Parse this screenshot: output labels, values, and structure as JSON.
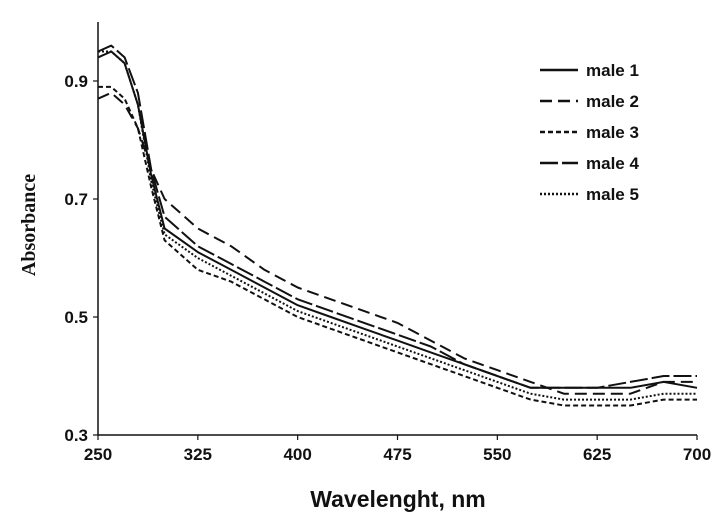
{
  "chart_data": {
    "type": "line",
    "xlabel": "Wavelenght, nm",
    "ylabel": "Absorbance",
    "xlim": [
      250,
      700
    ],
    "ylim": [
      0.3,
      1.0
    ],
    "xticks": [
      "250",
      "325",
      "400",
      "475",
      "550",
      "625",
      "700"
    ],
    "yticks": [
      "0.3",
      "0.5",
      "0.7",
      "0.9"
    ],
    "grid": false,
    "legend_position": "top-right",
    "x": [
      250,
      260,
      270,
      280,
      290,
      300,
      325,
      350,
      375,
      400,
      425,
      450,
      475,
      500,
      525,
      550,
      575,
      600,
      625,
      650,
      675,
      700
    ],
    "series": [
      {
        "name": "male 1",
        "style": "solid",
        "values": [
          0.94,
          0.95,
          0.93,
          0.86,
          0.74,
          0.65,
          0.61,
          0.58,
          0.55,
          0.52,
          0.5,
          0.48,
          0.46,
          0.44,
          0.42,
          0.4,
          0.38,
          0.38,
          0.38,
          0.38,
          0.39,
          0.38
        ]
      },
      {
        "name": "male 2",
        "style": "dashed",
        "values": [
          0.87,
          0.88,
          0.86,
          0.82,
          0.75,
          0.7,
          0.65,
          0.62,
          0.58,
          0.55,
          0.53,
          0.51,
          0.49,
          0.46,
          0.43,
          0.41,
          0.39,
          0.37,
          0.37,
          0.37,
          0.39,
          0.39
        ]
      },
      {
        "name": "male 3",
        "style": "short-dashed",
        "values": [
          0.89,
          0.89,
          0.87,
          0.82,
          0.72,
          0.63,
          0.58,
          0.56,
          0.53,
          0.5,
          0.48,
          0.46,
          0.44,
          0.42,
          0.4,
          0.38,
          0.36,
          0.35,
          0.35,
          0.35,
          0.36,
          0.36
        ]
      },
      {
        "name": "male 4",
        "style": "long-dashed",
        "values": [
          0.95,
          0.96,
          0.94,
          0.88,
          0.75,
          0.67,
          0.62,
          0.59,
          0.56,
          0.53,
          0.51,
          0.49,
          0.47,
          0.45,
          0.42,
          0.4,
          0.38,
          0.38,
          0.38,
          0.39,
          0.4,
          0.4
        ]
      },
      {
        "name": "male 5",
        "style": "dotted",
        "values": [
          0.95,
          0.95,
          0.93,
          0.86,
          0.73,
          0.64,
          0.6,
          0.57,
          0.54,
          0.51,
          0.49,
          0.47,
          0.45,
          0.43,
          0.41,
          0.39,
          0.37,
          0.36,
          0.36,
          0.36,
          0.37,
          0.37
        ]
      }
    ]
  }
}
